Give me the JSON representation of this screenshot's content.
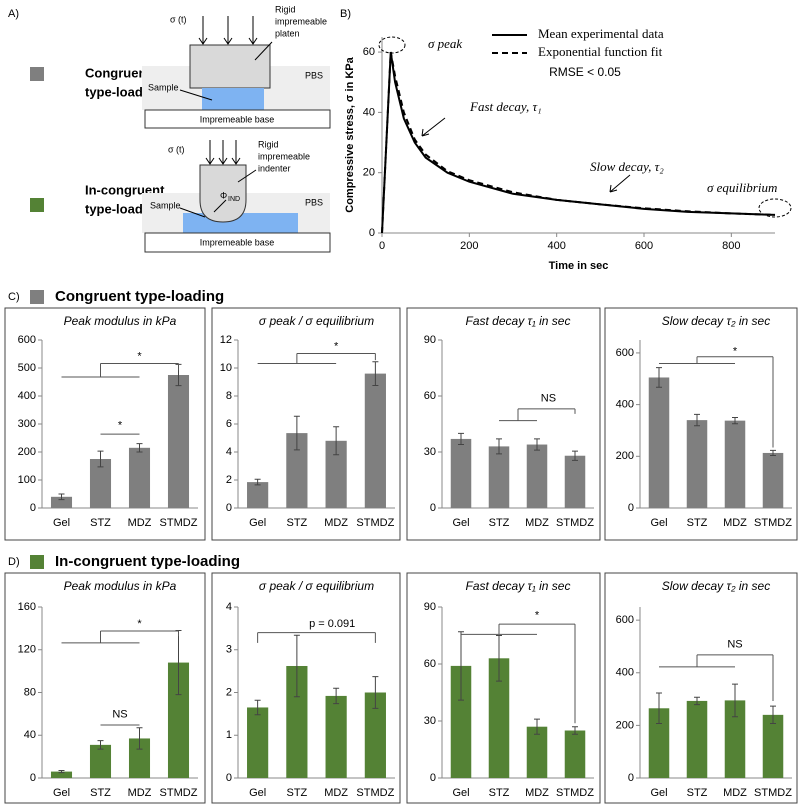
{
  "panels": {
    "a": "A)",
    "b": "B)",
    "c": "C)",
    "d": "D)"
  },
  "diagram": {
    "congruent": {
      "legend": [
        "Congruent",
        "type-loading"
      ],
      "force": "σ (t)",
      "platen": [
        "Rigid",
        "impremeable",
        "platen"
      ],
      "medium": "PBS",
      "sample": "Sample",
      "base": "Impremeable base"
    },
    "incongruent": {
      "legend": [
        "In-congruent",
        "type-loading"
      ],
      "force": "σ (t)",
      "indenter": [
        "Rigid",
        "impremeable",
        "indenter"
      ],
      "angle": "Φ",
      "angle_sub": "IND",
      "medium": "PBS",
      "sample": "Sample",
      "base": "Impremeable base"
    }
  },
  "sections": {
    "congruent": {
      "title": "Congruent type-loading",
      "color": "#7f7f7f"
    },
    "incongruent": {
      "title": "In-congruent type-loading",
      "color": "#548235"
    }
  },
  "chart_data": [
    {
      "type": "line",
      "x_label": "Time in sec",
      "y_label": "Compressive stress, σ in KPa",
      "x": [
        0,
        10,
        20,
        30,
        50,
        75,
        100,
        150,
        200,
        300,
        400,
        500,
        600,
        700,
        800,
        900
      ],
      "series": [
        {
          "name": "Mean experimental data",
          "color": "#000000",
          "line_style": "solid",
          "values": [
            0,
            30,
            60,
            50,
            38,
            30,
            25,
            20,
            17,
            13,
            11,
            9.5,
            8,
            7,
            6.5,
            6
          ]
        },
        {
          "name": "Exponential function fit",
          "color": "#000000",
          "line_style": "dashed",
          "values": [
            0,
            30,
            60,
            52,
            40,
            31,
            26,
            20.5,
            17.5,
            13.5,
            11,
            9.5,
            8.2,
            7.2,
            6.5,
            6
          ]
        }
      ],
      "note": "RMSE < 0.05",
      "annotations": [
        "σ peak",
        "Fast decay, τ₁",
        "Slow decay, τ₂",
        "σ equilibrium"
      ],
      "xlim": [
        0,
        900
      ],
      "xticks": [
        0,
        200,
        400,
        600,
        800
      ],
      "ylim": [
        0,
        65
      ],
      "yticks": [
        0,
        20,
        40,
        60
      ]
    },
    {
      "type": "bar",
      "title": "Peak modulus in kPa",
      "categories": [
        "Gel",
        "STZ",
        "MDZ",
        "STMDZ"
      ],
      "values": [
        40,
        175,
        215,
        475
      ],
      "errors": [
        10,
        28,
        15,
        38
      ],
      "color": "#7f7f7f",
      "ylim": [
        0,
        600
      ],
      "yticks": [
        0,
        100,
        200,
        300,
        400,
        500,
        600
      ],
      "annotations": [
        "*",
        "*"
      ]
    },
    {
      "type": "bar",
      "title": "σ peak / σ equilibrium",
      "categories": [
        "Gel",
        "STZ",
        "MDZ",
        "STMDZ"
      ],
      "values": [
        1.85,
        5.35,
        4.8,
        9.6
      ],
      "errors": [
        0.2,
        1.2,
        1.0,
        0.85
      ],
      "color": "#7f7f7f",
      "ylim": [
        0,
        12
      ],
      "yticks": [
        0,
        2,
        4,
        6,
        8,
        10,
        12
      ],
      "annotations": [
        "*"
      ]
    },
    {
      "type": "bar",
      "title": "Fast decay τ₁ in sec",
      "categories": [
        "Gel",
        "STZ",
        "MDZ",
        "STMDZ"
      ],
      "values": [
        37,
        33,
        34,
        28
      ],
      "errors": [
        3,
        4,
        3,
        2.5
      ],
      "color": "#7f7f7f",
      "ylim": [
        0,
        90
      ],
      "yticks": [
        0,
        30,
        60,
        90
      ],
      "annotations": [
        "NS"
      ]
    },
    {
      "type": "bar",
      "title": "Slow decay τ₂ in sec",
      "categories": [
        "Gel",
        "STZ",
        "MDZ",
        "STMDZ"
      ],
      "values": [
        505,
        340,
        338,
        213
      ],
      "errors": [
        38,
        22,
        12,
        10
      ],
      "color": "#7f7f7f",
      "ylim": [
        0,
        650
      ],
      "yticks": [
        0,
        200,
        400,
        600
      ],
      "annotations": [
        "*"
      ]
    },
    {
      "type": "bar",
      "title": "Peak modulus in kPa",
      "categories": [
        "Gel",
        "STZ",
        "MDZ",
        "STMDZ"
      ],
      "values": [
        6,
        31,
        37,
        108
      ],
      "errors": [
        1,
        4,
        10,
        30
      ],
      "color": "#548235",
      "ylim": [
        0,
        160
      ],
      "yticks": [
        0,
        40,
        80,
        120,
        160
      ],
      "annotations": [
        "*",
        "NS"
      ]
    },
    {
      "type": "bar",
      "title": "σ peak / σ equilibrium",
      "categories": [
        "Gel",
        "STZ",
        "MDZ",
        "STMDZ"
      ],
      "values": [
        1.65,
        2.62,
        1.92,
        2.0
      ],
      "errors": [
        0.17,
        0.72,
        0.18,
        0.37
      ],
      "color": "#548235",
      "ylim": [
        0,
        4
      ],
      "yticks": [
        0,
        1,
        2,
        3,
        4
      ],
      "annotations": [
        "p = 0.091"
      ]
    },
    {
      "type": "bar",
      "title": "Fast decay τ₁ in sec",
      "categories": [
        "Gel",
        "STZ",
        "MDZ",
        "STMDZ"
      ],
      "values": [
        59,
        63,
        27,
        25
      ],
      "errors": [
        18,
        12,
        4,
        2
      ],
      "color": "#548235",
      "ylim": [
        0,
        90
      ],
      "yticks": [
        0,
        30,
        60,
        90
      ],
      "annotations": [
        "*"
      ]
    },
    {
      "type": "bar",
      "title": "Slow decay τ₂ in sec",
      "categories": [
        "Gel",
        "STZ",
        "MDZ",
        "STMDZ"
      ],
      "values": [
        265,
        293,
        295,
        240
      ],
      "errors": [
        58,
        14,
        62,
        33
      ],
      "color": "#548235",
      "ylim": [
        0,
        650
      ],
      "yticks": [
        0,
        200,
        400,
        600
      ],
      "annotations": [
        "NS"
      ]
    }
  ]
}
